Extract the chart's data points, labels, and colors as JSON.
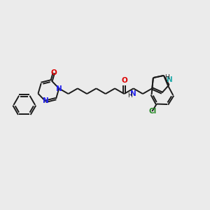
{
  "bg_color": "#ebebeb",
  "bond_color": "#1a1a1a",
  "N_color": "#2222ee",
  "O_color": "#dd0000",
  "Cl_color": "#228822",
  "NH_ind_color": "#22aaaa",
  "line_width": 1.4,
  "font_size": 7.5,
  "fig_width": 3.0,
  "fig_height": 3.0,
  "xlim": [
    0,
    14
  ],
  "ylim": [
    2,
    9
  ]
}
